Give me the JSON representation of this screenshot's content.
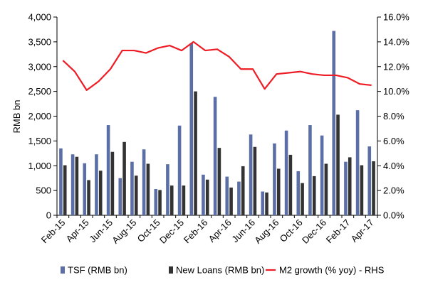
{
  "chart_data": {
    "type": "bar",
    "title": "",
    "ylabel_left": "RMB bn",
    "ylabel_right": "",
    "ylim_left": [
      0,
      4000
    ],
    "ylim_right": [
      0,
      16
    ],
    "yticks_left": [
      "0",
      "500",
      "1,000",
      "1,500",
      "2,000",
      "2,500",
      "3,000",
      "3,500",
      "4,000"
    ],
    "yticks_right": [
      "0.0%",
      "2.0%",
      "4.0%",
      "6.0%",
      "8.0%",
      "10.0%",
      "12.0%",
      "14.0%",
      "16.0%"
    ],
    "categories": [
      "Feb-15",
      "Mar-15",
      "Apr-15",
      "May-15",
      "Jun-15",
      "Jul-15",
      "Aug-15",
      "Sep-15",
      "Oct-15",
      "Nov-15",
      "Dec-15",
      "Jan-16",
      "Feb-16",
      "Mar-16",
      "Apr-16",
      "May-16",
      "Jun-16",
      "Jul-16",
      "Aug-16",
      "Sep-16",
      "Oct-16",
      "Nov-16",
      "Dec-16",
      "Jan-17",
      "Feb-17",
      "Mar-17",
      "Apr-17"
    ],
    "xtick_labels": [
      "Feb-15",
      "",
      "Apr-15",
      "",
      "Jun-15",
      "",
      "Aug-15",
      "",
      "Oct-15",
      "",
      "Dec-15",
      "",
      "Feb-16",
      "",
      "Apr-16",
      "",
      "Jun-16",
      "",
      "Aug-16",
      "",
      "Oct-16",
      "",
      "Dec-16",
      "",
      "Feb-17",
      "",
      "Apr-17"
    ],
    "grid": false,
    "legend_position": "bottom",
    "series": [
      {
        "name": "TSF (RMB bn)",
        "type": "bar",
        "axis": "left",
        "color": "#5b6fa6",
        "values": [
          1350,
          1230,
          1050,
          1230,
          1820,
          750,
          1080,
          1330,
          530,
          1030,
          1810,
          3470,
          820,
          2390,
          780,
          680,
          1630,
          480,
          1450,
          1710,
          890,
          1820,
          1610,
          3720,
          1080,
          2120,
          1390
        ]
      },
      {
        "name": "New Loans (RMB bn)",
        "type": "bar",
        "axis": "left",
        "color": "#333333",
        "values": [
          1010,
          1180,
          710,
          900,
          1280,
          1480,
          800,
          1040,
          510,
          600,
          600,
          2500,
          720,
          1360,
          560,
          990,
          1380,
          460,
          940,
          1220,
          650,
          790,
          1040,
          2030,
          1170,
          1010,
          1090
        ]
      },
      {
        "name": "M2 growth (% yoy) - RHS",
        "type": "line",
        "axis": "right",
        "color": "#ee1c24",
        "values": [
          12.5,
          11.6,
          10.1,
          10.8,
          11.8,
          13.3,
          13.3,
          13.1,
          13.5,
          13.7,
          13.3,
          14.0,
          13.3,
          13.4,
          12.8,
          11.8,
          11.8,
          10.2,
          11.4,
          11.5,
          11.6,
          11.4,
          11.3,
          11.3,
          11.1,
          10.6,
          10.5
        ]
      }
    ]
  }
}
